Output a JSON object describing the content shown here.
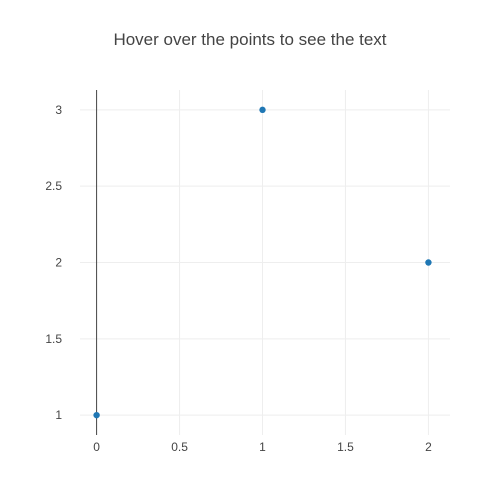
{
  "chart_data": {
    "type": "scatter",
    "title": "Hover over the points to see the text",
    "xlabel": "",
    "ylabel": "",
    "x": [
      0,
      1,
      2
    ],
    "y": [
      1,
      3,
      2
    ],
    "xlim": [
      -0.1,
      2.13
    ],
    "ylim": [
      0.87,
      3.13
    ],
    "xticks": [
      0,
      0.5,
      1,
      1.5,
      2
    ],
    "xtick_labels": [
      "0",
      "0.5",
      "1",
      "1.5",
      "2"
    ],
    "yticks": [
      1,
      1.5,
      2,
      2.5,
      3
    ],
    "ytick_labels": [
      "1",
      "1.5",
      "2",
      "2.5",
      "3"
    ],
    "grid": true,
    "marker_color": "#1f77b4",
    "grid_color": "#eeeeee",
    "axis_color": "#444444"
  }
}
